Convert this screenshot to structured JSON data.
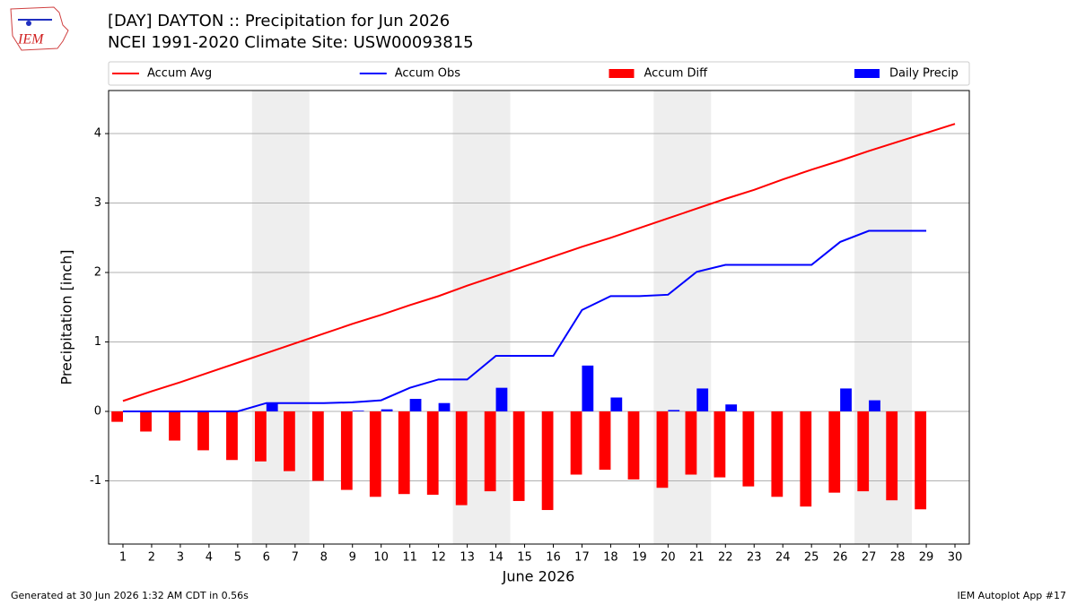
{
  "chart_data": {
    "type": "combo",
    "title": "[DAY] DAYTON :: Precipitation for Jun 2026",
    "subtitle": "NCEI 1991-2020 Climate Site: USW00093815",
    "logo_text": "IEM",
    "x_label": "June 2026",
    "y_label": "Precipitation [inch]",
    "footer_left": "Generated at 30 Jun 2026 1:32 AM CDT in 0.56s",
    "footer_right": "IEM Autoplot App #17",
    "x": [
      1,
      2,
      3,
      4,
      5,
      6,
      7,
      8,
      9,
      10,
      11,
      12,
      13,
      14,
      15,
      16,
      17,
      18,
      19,
      20,
      21,
      22,
      23,
      24,
      25,
      26,
      27,
      28,
      29,
      30
    ],
    "xlim": [
      0.5,
      30.5
    ],
    "xticks": [
      1,
      2,
      3,
      4,
      5,
      6,
      7,
      8,
      9,
      10,
      11,
      12,
      13,
      14,
      15,
      16,
      17,
      18,
      19,
      20,
      21,
      22,
      23,
      24,
      25,
      26,
      27,
      28,
      29,
      30
    ],
    "ylim": [
      -1.91,
      4.62
    ],
    "yticks": [
      -1,
      0,
      1,
      2,
      3,
      4
    ],
    "grid": true,
    "legend": "top",
    "weekend_spans": [
      [
        5.5,
        7.5
      ],
      [
        12.5,
        14.5
      ],
      [
        19.5,
        21.5
      ],
      [
        26.5,
        28.5
      ]
    ],
    "weekend_color": "#eeeeee",
    "series": [
      {
        "name": "Accum Avg",
        "type": "line",
        "color": "#ff0000",
        "values": [
          0.15,
          0.29,
          0.42,
          0.56,
          0.7,
          0.84,
          0.98,
          1.12,
          1.26,
          1.39,
          1.53,
          1.66,
          1.81,
          1.95,
          2.09,
          2.23,
          2.37,
          2.5,
          2.64,
          2.78,
          2.92,
          3.06,
          3.19,
          3.34,
          3.48,
          3.61,
          3.75,
          3.88,
          4.01,
          4.14
        ]
      },
      {
        "name": "Accum Obs",
        "type": "line",
        "color": "#0000ff",
        "values": [
          0,
          0,
          0,
          0,
          0,
          0.12,
          0.12,
          0.12,
          0.13,
          0.16,
          0.34,
          0.46,
          0.46,
          0.8,
          0.8,
          0.8,
          1.46,
          1.66,
          1.66,
          1.68,
          2.01,
          2.11,
          2.11,
          2.11,
          2.11,
          2.44,
          2.6,
          2.6,
          2.6,
          null
        ]
      },
      {
        "name": "Accum Diff",
        "type": "bar",
        "color": "#ff0000",
        "offset": -0.2,
        "width": 0.4,
        "values": [
          -0.15,
          -0.29,
          -0.42,
          -0.56,
          -0.7,
          -0.72,
          -0.86,
          -1.0,
          -1.13,
          -1.23,
          -1.19,
          -1.2,
          -1.35,
          -1.15,
          -1.29,
          -1.42,
          -0.91,
          -0.84,
          -0.98,
          -1.1,
          -0.91,
          -0.95,
          -1.08,
          -1.23,
          -1.37,
          -1.17,
          -1.15,
          -1.28,
          -1.41,
          null
        ]
      },
      {
        "name": "Daily Precip",
        "type": "bar",
        "color": "#0000ff",
        "offset": 0.2,
        "width": 0.4,
        "values": [
          0,
          0,
          0,
          0,
          0,
          0.12,
          0,
          0,
          0.01,
          0.03,
          0.18,
          0.12,
          0,
          0.34,
          0,
          0,
          0.66,
          0.2,
          0,
          0.02,
          0.33,
          0.1,
          0,
          0,
          0,
          0.33,
          0.16,
          0,
          0,
          null
        ]
      }
    ]
  }
}
